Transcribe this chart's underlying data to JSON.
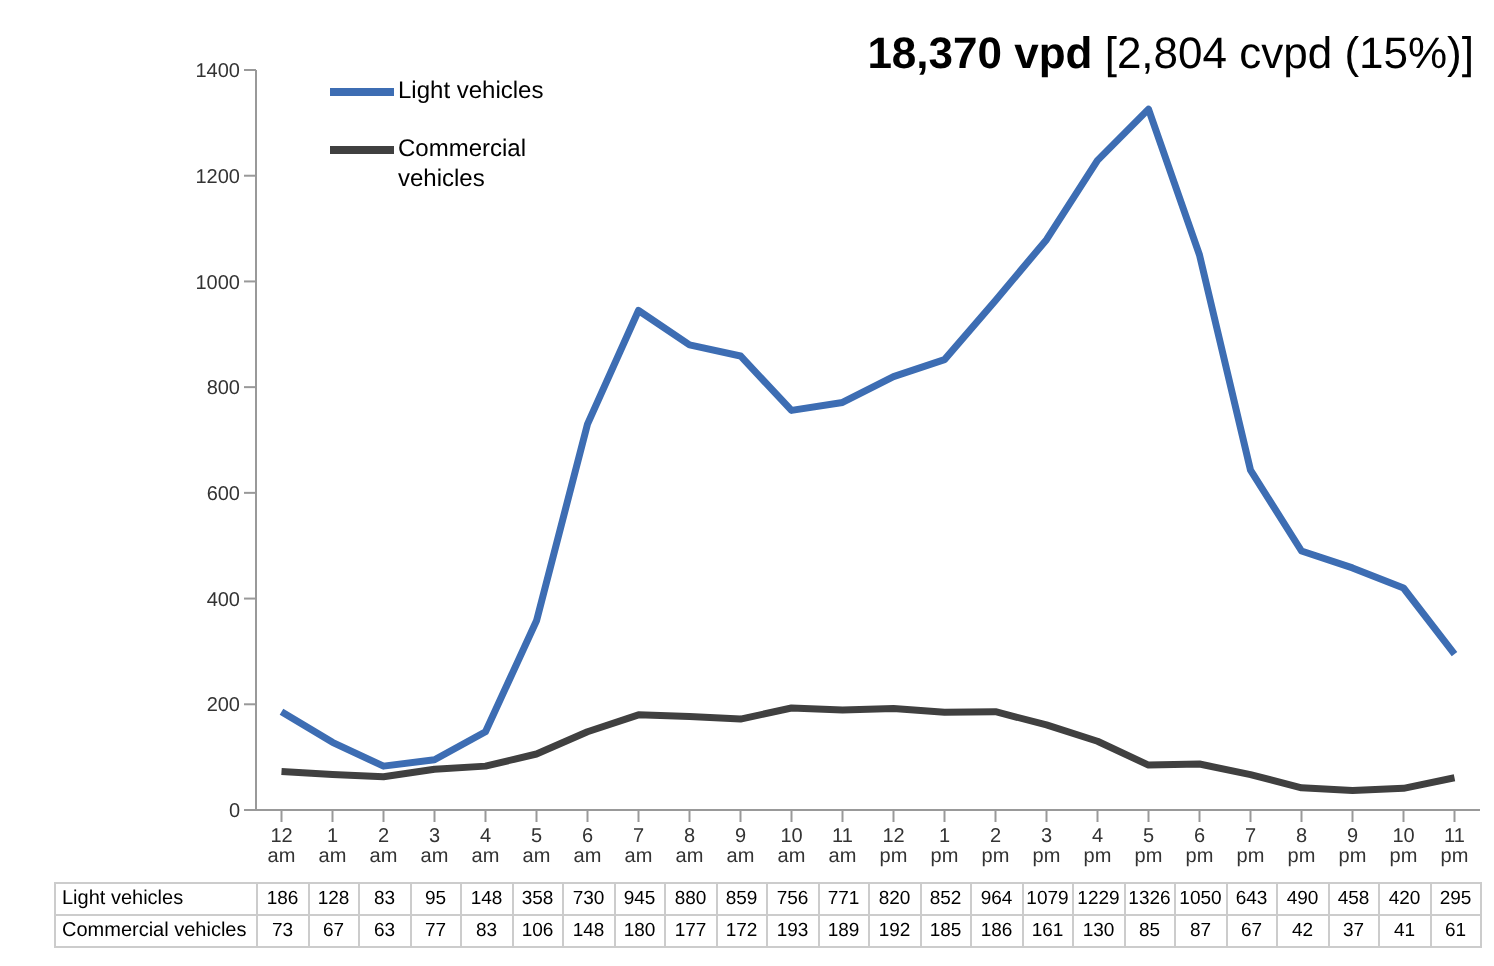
{
  "chart_data": {
    "type": "line",
    "title": "18,370 vpd",
    "subtitle": "[2,804 cvpd (15%)]",
    "categories": [
      "12 am",
      "1 am",
      "2 am",
      "3 am",
      "4 am",
      "5 am",
      "6 am",
      "7 am",
      "8 am",
      "9 am",
      "10 am",
      "11 am",
      "12 pm",
      "1 pm",
      "2 pm",
      "3 pm",
      "4 pm",
      "5 pm",
      "6 pm",
      "7 pm",
      "8 pm",
      "9 pm",
      "10 pm",
      "11 pm"
    ],
    "series": [
      {
        "name": "Light vehicles",
        "color": "#3d6db3",
        "values": [
          186,
          128,
          83,
          95,
          148,
          358,
          730,
          945,
          880,
          859,
          756,
          771,
          820,
          852,
          964,
          1079,
          1229,
          1326,
          1050,
          643,
          490,
          458,
          420,
          295
        ]
      },
      {
        "name": "Commercial vehicles",
        "color": "#404040",
        "values": [
          73,
          67,
          63,
          77,
          83,
          106,
          148,
          180,
          177,
          172,
          193,
          189,
          192,
          185,
          186,
          161,
          130,
          85,
          87,
          67,
          42,
          37,
          41,
          61
        ]
      }
    ],
    "ylim": [
      0,
      1400
    ],
    "yticks": [
      0,
      200,
      400,
      600,
      800,
      1000,
      1200,
      1400
    ],
    "grid": false,
    "legend": "top left",
    "marker": "none",
    "line_style": "solid",
    "data_labels": true
  }
}
